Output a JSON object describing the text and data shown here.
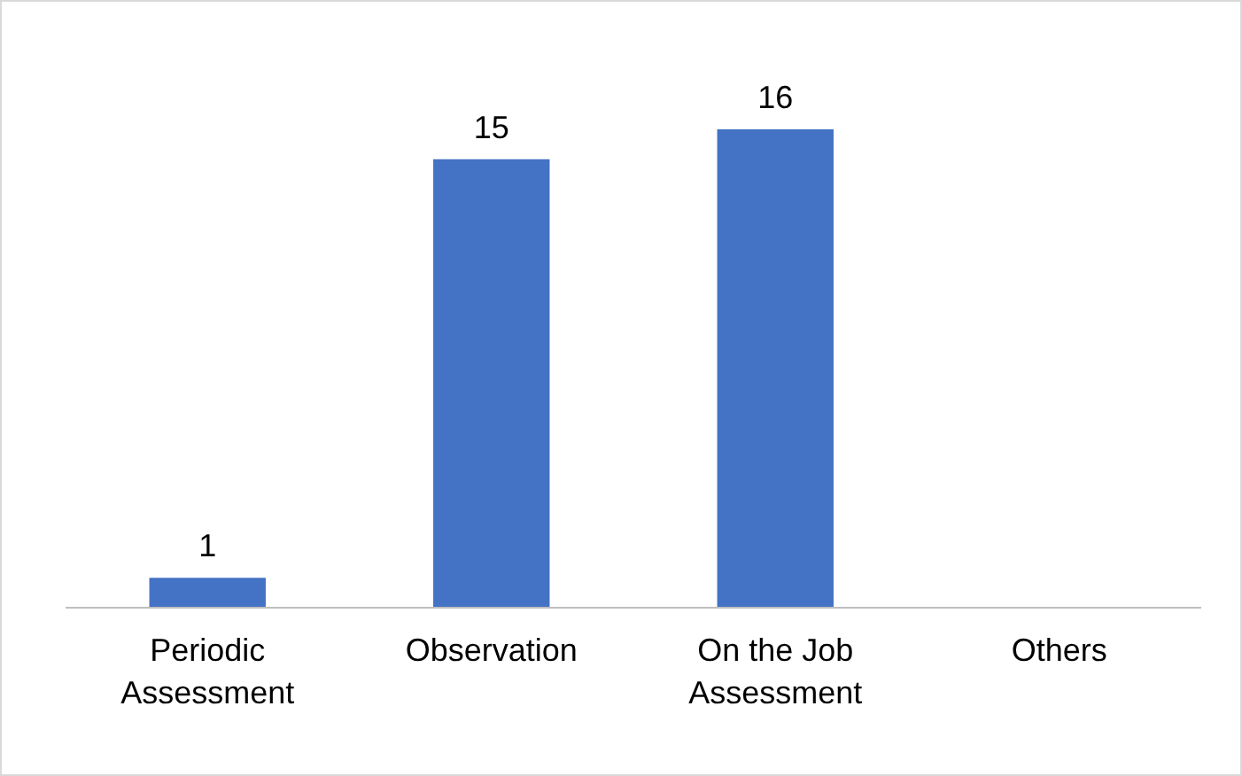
{
  "chart_data": {
    "type": "bar",
    "categories": [
      "Periodic Assessment",
      "Observation",
      "On the Job Assessment",
      "Others"
    ],
    "values": [
      1,
      15,
      16,
      0
    ],
    "color": "#4472c4",
    "value_labels": [
      "1",
      "15",
      "16",
      null
    ]
  }
}
